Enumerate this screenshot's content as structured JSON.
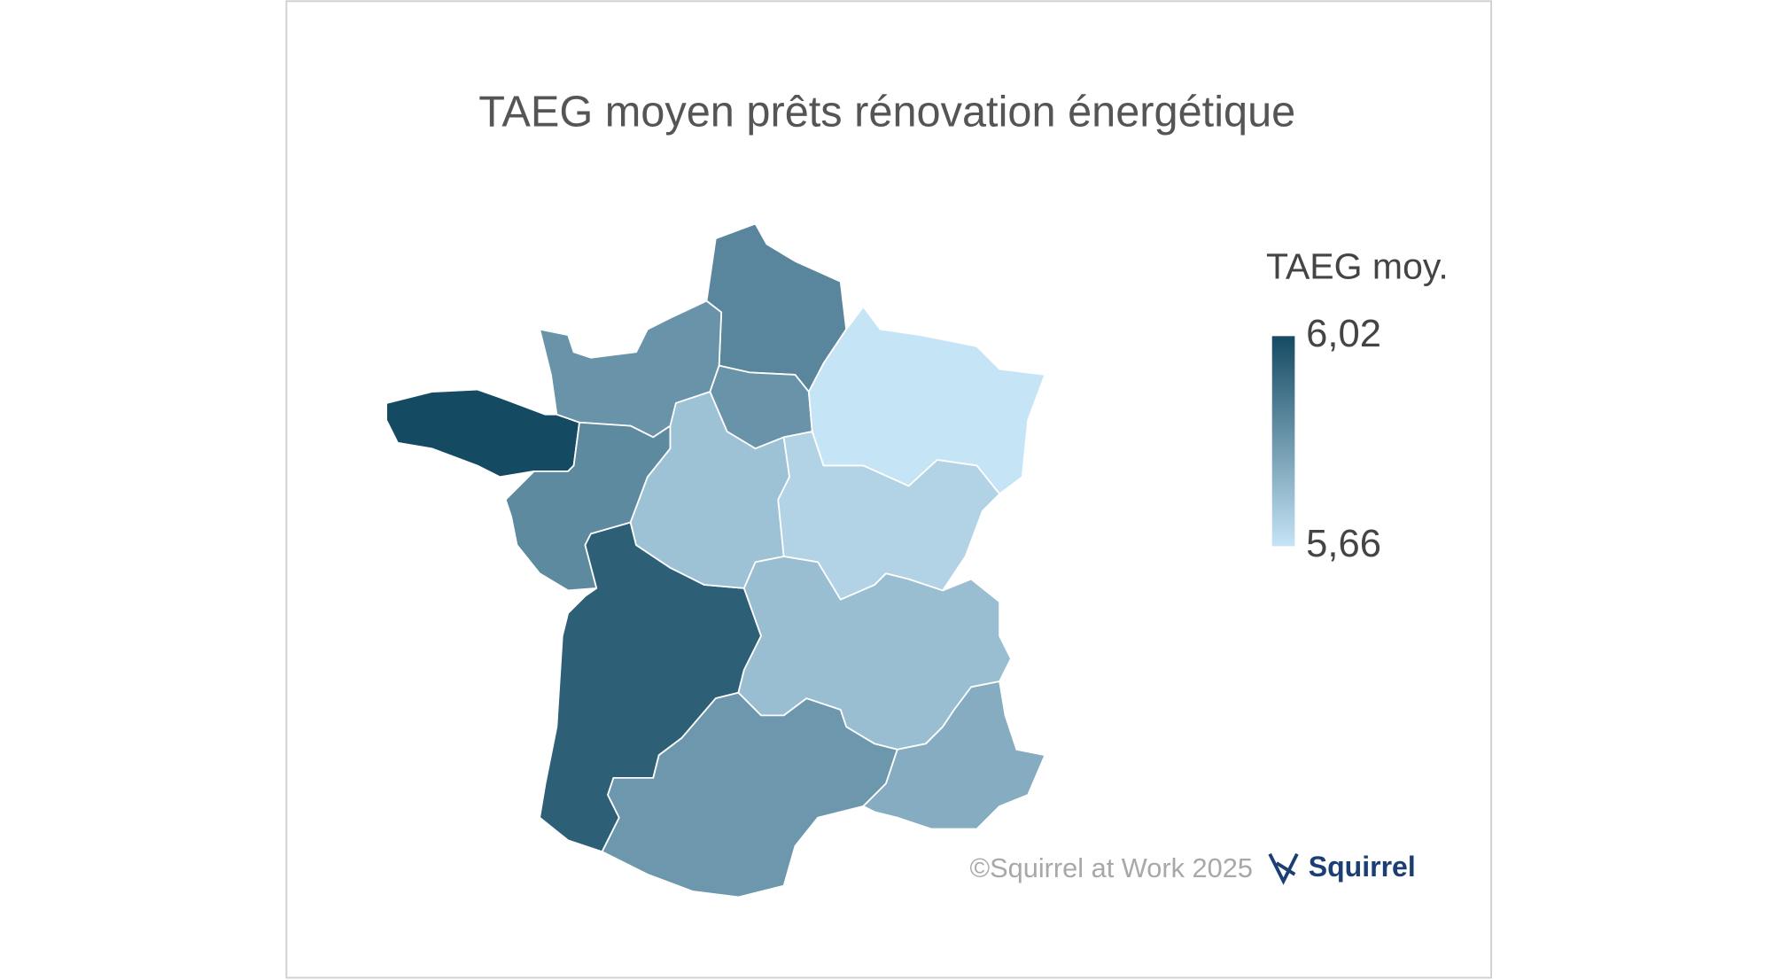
{
  "title": "TAEG moyen prêts rénovation énergétique",
  "legend": {
    "title": "TAEG moy.",
    "min": {
      "value": 5.66,
      "label": "5,66"
    },
    "max": {
      "value": 6.02,
      "label": "6,02"
    },
    "color_low": "#c5e4f5",
    "color_high": "#154a63"
  },
  "regions": [
    6.02,
    5.97,
    5.88,
    5.85,
    5.87,
    5.85,
    5.74,
    5.66,
    5.7,
    5.75,
    5.84,
    5.79
  ],
  "footer": {
    "copyright": "©Squirrel at Work 2025",
    "logo": "Squirrel"
  }
}
